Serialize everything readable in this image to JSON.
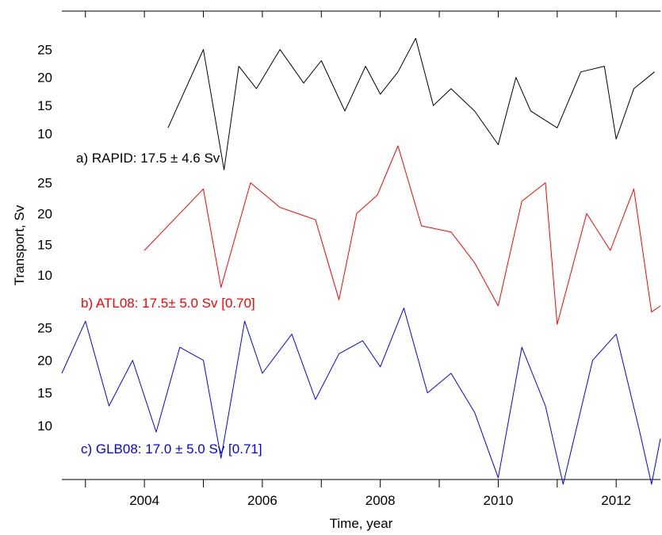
{
  "chart_data": {
    "type": "line",
    "xlabel": "Time, year",
    "ylabel": "Transport, Sv",
    "xlim": [
      2002.6,
      2012.75
    ],
    "x_ticks": [
      2004,
      2006,
      2008,
      2010,
      2012
    ],
    "x_minor_ticks": [
      2003,
      2005,
      2007,
      2009,
      2011
    ],
    "y_ticks": [
      10,
      15,
      20,
      25
    ],
    "grid": false,
    "stacked_panels": true,
    "panels": [
      {
        "name": "RAPID",
        "label": "a) RAPID: 17.5 ± 4.6 Sv",
        "color": "#000000",
        "ylim": [
          1,
          31
        ],
        "x_range": [
          2004.4,
          2012.65
        ],
        "series": [
          {
            "name": "RAPID",
            "x": [
              2004.4,
              2005.0,
              2005.35,
              2005.6,
              2005.9,
              2006.3,
              2006.7,
              2007.0,
              2007.4,
              2007.75,
              2008.0,
              2008.3,
              2008.6,
              2008.9,
              2009.2,
              2009.6,
              2010.0,
              2010.3,
              2010.55,
              2011.0,
              2011.4,
              2011.8,
              2012.0,
              2012.3,
              2012.65
            ],
            "y": [
              11.0,
              25.0,
              3.5,
              22.0,
              18.0,
              25.0,
              19.0,
              23.0,
              14.0,
              22.0,
              17.0,
              21.0,
              27.0,
              15.0,
              18.0,
              14.0,
              8.0,
              20.0,
              14.0,
              11.0,
              21.0,
              22.0,
              9.0,
              18.0,
              21.0
            ]
          }
        ]
      },
      {
        "name": "ATL08",
        "label": "b) ATL08: 17.5± 5.0 Sv [0.70]",
        "color": "#ff0000",
        "ylim": [
          1,
          31
        ],
        "x_range": [
          2004.0,
          2012.75
        ],
        "series": [
          {
            "name": "ATL08",
            "x": [
              2004.0,
              2004.5,
              2005.0,
              2005.3,
              2005.8,
              2006.3,
              2006.9,
              2007.3,
              2007.6,
              2007.95,
              2008.3,
              2008.7,
              2009.2,
              2009.6,
              2010.0,
              2010.4,
              2010.8,
              2011.0,
              2011.5,
              2011.9,
              2012.3,
              2012.6,
              2012.75
            ],
            "y": [
              14.0,
              19.0,
              24.0,
              8.0,
              25.0,
              21.0,
              19.0,
              6.0,
              20.0,
              23.0,
              31.0,
              18.0,
              17.0,
              12.0,
              5.0,
              22.0,
              25.0,
              2.0,
              20.0,
              14.0,
              24.0,
              4.0,
              5.0
            ]
          }
        ]
      },
      {
        "name": "GLB08",
        "label": "c) GLB08: 17.0 ± 5.0 Sv [0.71]",
        "color": "#0000ff",
        "ylim": [
          1,
          31
        ],
        "x_range": [
          2002.6,
          2012.75
        ],
        "series": [
          {
            "name": "GLB08",
            "x": [
              2002.6,
              2003.0,
              2003.4,
              2003.8,
              2004.2,
              2004.6,
              2005.0,
              2005.3,
              2005.7,
              2006.0,
              2006.5,
              2006.9,
              2007.3,
              2007.7,
              2008.0,
              2008.4,
              2008.8,
              2009.2,
              2009.6,
              2010.0,
              2010.4,
              2010.8,
              2011.1,
              2011.6,
              2012.0,
              2012.4,
              2012.6,
              2012.75
            ],
            "y": [
              18.0,
              26.0,
              13.0,
              20.0,
              9.0,
              22.0,
              20.0,
              5.0,
              26.0,
              18.0,
              24.0,
              14.0,
              21.0,
              23.0,
              19.0,
              28.0,
              15.0,
              18.0,
              12.0,
              2.0,
              22.0,
              13.0,
              1.0,
              20.0,
              24.0,
              9.0,
              1.0,
              8.0
            ]
          }
        ]
      }
    ]
  }
}
